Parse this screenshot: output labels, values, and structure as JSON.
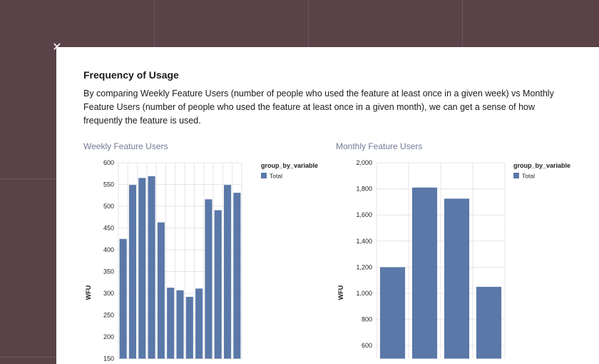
{
  "modal": {
    "title": "Frequency of Usage",
    "description": "By comparing Weekly Feature Users (number of people who used the feature at least once in a given week) vs Monthly Feature Users (number of people who used the feature at least once in a given month), we can get a sense of how frequently the feature is used.",
    "close_icon": "close-icon"
  },
  "colors": {
    "background": "#5a4249",
    "bar": "#5a78a8",
    "chart_title": "#737a96"
  },
  "charts": {
    "weekly": {
      "title": "Weekly Feature Users"
    },
    "monthly": {
      "title": "Monthly Feature Users"
    }
  },
  "chart_data": [
    {
      "type": "bar",
      "title": "Weekly Feature Users",
      "xlabel": "",
      "ylabel": "WFU",
      "ylim": [
        150,
        600
      ],
      "yticks": [
        150,
        200,
        250,
        300,
        350,
        400,
        450,
        500,
        550,
        600
      ],
      "ytick_labels": [
        "150",
        "200",
        "250",
        "300",
        "350",
        "400",
        "450",
        "500",
        "550",
        "600"
      ],
      "legend": {
        "title": "group_by_variable",
        "position": "top-right"
      },
      "series": [
        {
          "name": "Total",
          "values": [
            425,
            549,
            565,
            569,
            463,
            313,
            307,
            292,
            311,
            516,
            491,
            549,
            531
          ]
        }
      ],
      "grid": true
    },
    {
      "type": "bar",
      "title": "Monthly Feature Users",
      "xlabel": "",
      "ylabel": "WFU",
      "ylim": [
        500,
        2000
      ],
      "yticks": [
        600,
        800,
        1000,
        1200,
        1400,
        1600,
        1800,
        2000
      ],
      "ytick_labels": [
        "600",
        "800",
        "1,000",
        "1,200",
        "1,400",
        "1,600",
        "1,800",
        "2,000"
      ],
      "legend": {
        "title": "group_by_variable",
        "position": "top-right"
      },
      "series": [
        {
          "name": "Total",
          "values": [
            1200,
            1810,
            1725,
            1050
          ]
        }
      ],
      "grid": true
    }
  ]
}
